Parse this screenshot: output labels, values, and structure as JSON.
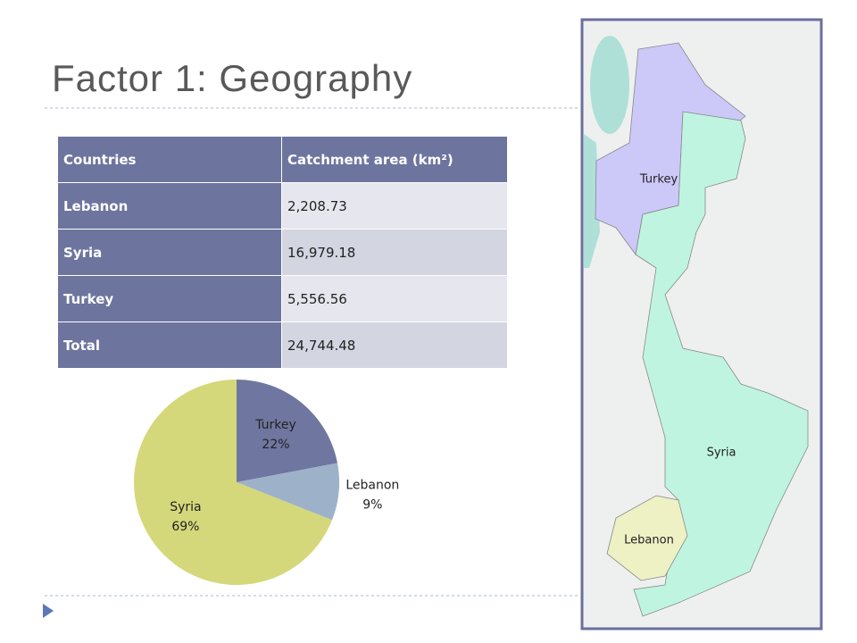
{
  "title": "Factor 1: Geography",
  "table": {
    "header": [
      "Countries",
      "Catchment area (km²)"
    ],
    "rows": [
      [
        "Lebanon",
        "2,208.73"
      ],
      [
        "Syria",
        "16,979.18"
      ],
      [
        "Turkey",
        "5,556.56"
      ],
      [
        "Total",
        "24,744.48"
      ]
    ]
  },
  "chart_data": {
    "type": "pie",
    "categories": [
      "Turkey",
      "Lebanon",
      "Syria"
    ],
    "values": [
      22,
      9,
      69
    ],
    "value_labels": [
      "22%",
      "9%",
      "69%"
    ],
    "colors": [
      "#6f76a0",
      "#9db2c8",
      "#d4d87a"
    ]
  },
  "map": {
    "labels": [
      "Turkey",
      "Syria",
      "Lebanon"
    ]
  }
}
